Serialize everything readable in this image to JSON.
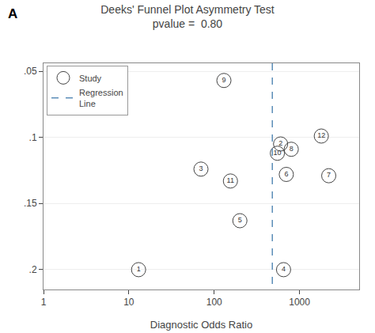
{
  "chart_data": {
    "type": "scatter",
    "title": "Deeks' Funnel Plot Asymmetry Test",
    "subtitle": "pvalue =  0.80",
    "annotations": [
      "A"
    ],
    "x_label": "Diagnostic Odds Ratio",
    "log": "x",
    "xlim": [
      1,
      5000
    ],
    "xticks": [
      1,
      10,
      100,
      1000
    ],
    "ylim": [
      0.215,
      0.044
    ],
    "yticks": [
      {
        "value": 0.05,
        "label": ".05"
      },
      {
        "value": 0.1,
        "label": ".1"
      },
      {
        "value": 0.15,
        "label": ".15"
      },
      {
        "value": 0.2,
        "label": ".2"
      }
    ],
    "grid": "y",
    "legend": "upper left",
    "series": [
      {
        "name": "Study",
        "type": "scatter",
        "marker": "circle-open",
        "color": "#444444",
        "x": [
          130,
          13,
          70,
          155,
          200,
          550,
          600,
          800,
          1800,
          700,
          650,
          2200
        ],
        "values": [
          0.057,
          0.2,
          0.124,
          0.133,
          0.163,
          0.112,
          0.105,
          0.109,
          0.099,
          0.128,
          0.2,
          0.129
        ],
        "labels": [
          "9",
          "1",
          "3",
          "11",
          "5",
          "10",
          "2",
          "8",
          "12",
          "6",
          "4",
          "7"
        ]
      },
      {
        "name": "Regression\nLine",
        "type": "line",
        "line_style": "dash",
        "color": "#5b8db8",
        "x": [
          480,
          480
        ],
        "values": [
          0.044,
          0.215
        ]
      }
    ]
  }
}
